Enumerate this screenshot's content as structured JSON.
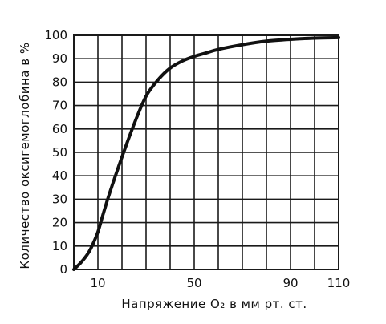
{
  "chart_data": {
    "type": "line",
    "xlabel": "Напряжение O₂ в мм рт. ст.",
    "ylabel": "Количество оксигемоглобина в %",
    "xlim": [
      0,
      110
    ],
    "ylim": [
      0,
      100
    ],
    "x_tick_labels": [
      {
        "value": 10,
        "label": "10"
      },
      {
        "value": 50,
        "label": "50"
      },
      {
        "value": 90,
        "label": "90"
      },
      {
        "value": 110,
        "label": "110"
      }
    ],
    "y_tick_labels": [
      {
        "value": 0,
        "label": "0"
      },
      {
        "value": 10,
        "label": "10"
      },
      {
        "value": 20,
        "label": "20"
      },
      {
        "value": 30,
        "label": "30"
      },
      {
        "value": 40,
        "label": "40"
      },
      {
        "value": 50,
        "label": "50"
      },
      {
        "value": 60,
        "label": "60"
      },
      {
        "value": 70,
        "label": "70"
      },
      {
        "value": 80,
        "label": "80"
      },
      {
        "value": 90,
        "label": "90"
      },
      {
        "value": 100,
        "label": "100"
      }
    ],
    "grid": true,
    "series": [
      {
        "x": [
          0,
          3,
          6,
          8,
          10,
          12,
          15,
          20,
          25,
          30,
          35,
          40,
          45,
          50,
          55,
          60,
          70,
          80,
          90,
          100,
          110
        ],
        "y": [
          0,
          3,
          7,
          11,
          16,
          23,
          33,
          48,
          62,
          74,
          81,
          86,
          89,
          91,
          92.5,
          94,
          96,
          97.5,
          98.3,
          98.8,
          99
        ]
      }
    ]
  }
}
